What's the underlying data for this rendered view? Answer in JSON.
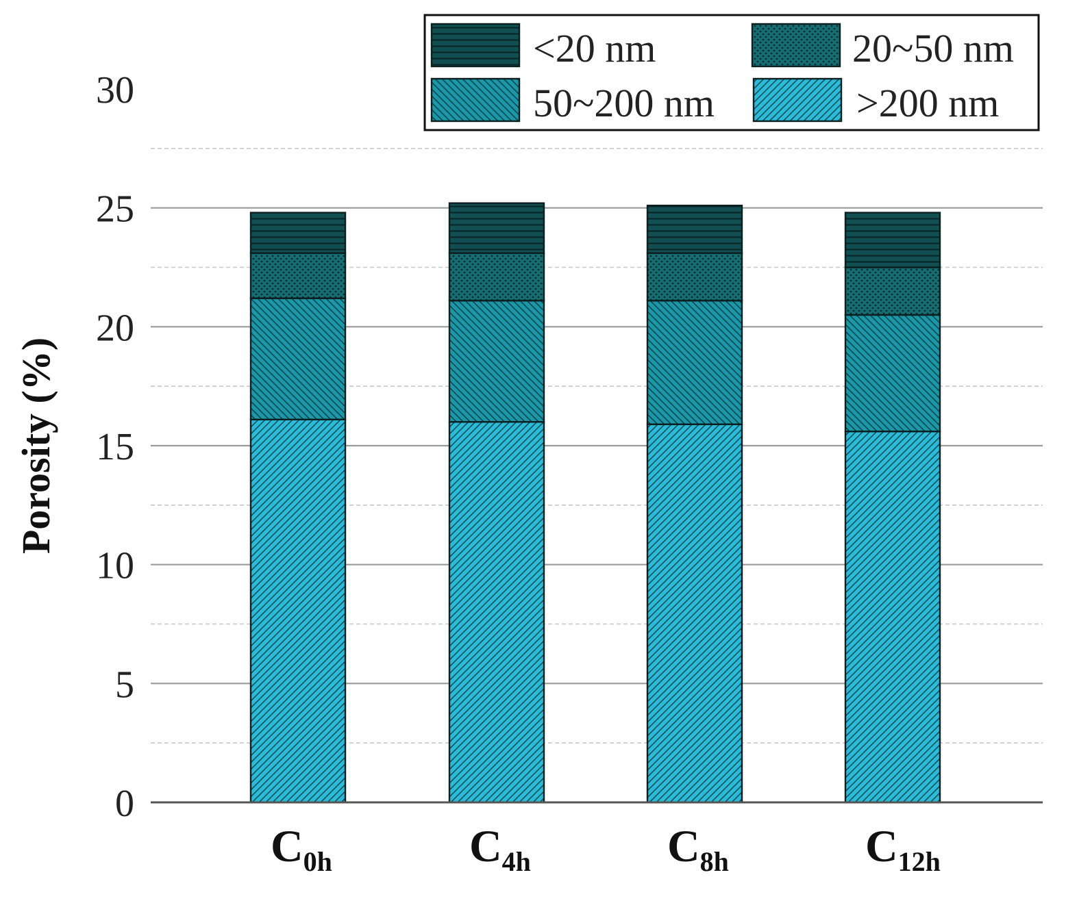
{
  "chart_data": {
    "type": "bar",
    "stacked": true,
    "categories": [
      {
        "main": "C",
        "sub": "0h"
      },
      {
        "main": "C",
        "sub": "4h"
      },
      {
        "main": "C",
        "sub": "8h"
      },
      {
        "main": "C",
        "sub": "12h"
      }
    ],
    "series": [
      {
        "name": ">200 nm",
        "legend_glyph": ">",
        "legend_rest": "200 nm",
        "values": [
          16.1,
          16.0,
          15.9,
          15.6
        ],
        "color": "#2bbbd8",
        "pattern": "hatch-forward"
      },
      {
        "name": "50~200 nm",
        "legend_glyph": "",
        "legend_rest": "50~200 nm",
        "values": [
          5.1,
          5.1,
          5.2,
          4.9
        ],
        "color": "#1a98a8",
        "pattern": "hatch-back"
      },
      {
        "name": "20~50 nm",
        "legend_glyph": "",
        "legend_rest": "20~50 nm",
        "values": [
          1.9,
          2.0,
          2.0,
          2.0
        ],
        "color": "#156f73",
        "pattern": "dots"
      },
      {
        "name": "<20 nm",
        "legend_glyph": "<",
        "legend_rest": "20 nm",
        "values": [
          1.7,
          2.1,
          2.0,
          2.3
        ],
        "color": "#124f52",
        "pattern": "horizontal"
      }
    ],
    "legend_order": [
      "<20 nm",
      "20~50 nm",
      "50~200 nm",
      ">200 nm"
    ],
    "legend_position": "top-right",
    "title": "",
    "xlabel": "",
    "ylabel": "Porosity (%)",
    "ylim": [
      0,
      30
    ],
    "yticks": [
      0,
      5,
      10,
      15,
      20,
      25,
      30
    ],
    "grid": {
      "major": true,
      "minor_dashed": true
    }
  }
}
